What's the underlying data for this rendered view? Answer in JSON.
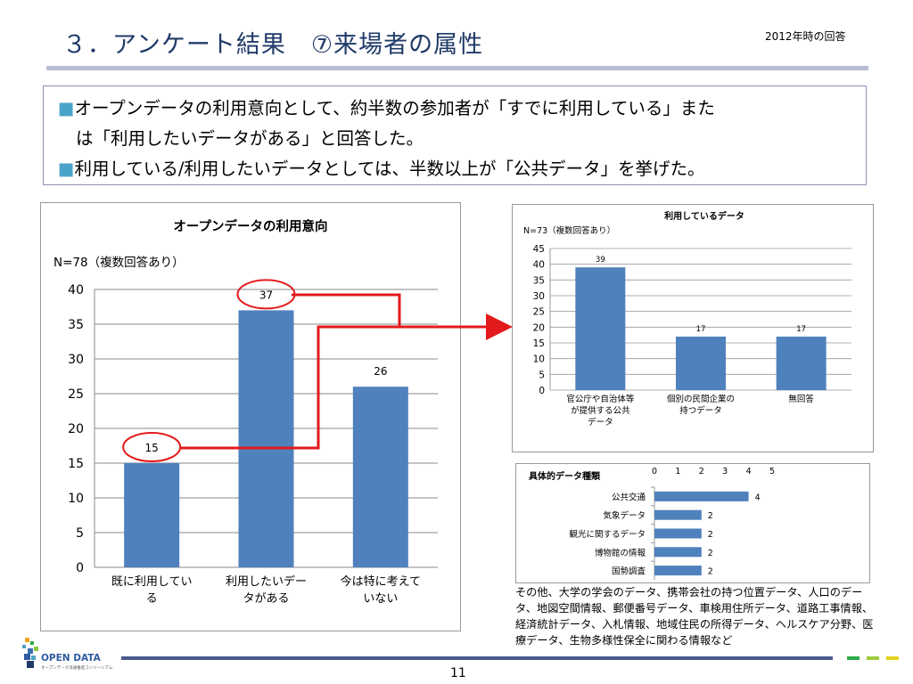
{
  "header": {
    "title": "３．アンケート結果　⑦来場者の属性",
    "date_note": "2012年時の回答"
  },
  "summary": {
    "bullet_marker": "■",
    "lines": [
      "オープンデータの利用意向として、約半数の参加者が「すでに利用している」また",
      "は「利用したいデータがある」と回答した。",
      "利用している/利用したいデータとしては、半数以上が「公共データ」を挙げた。"
    ]
  },
  "chart_data": [
    {
      "type": "bar",
      "title": "オープンデータの利用意向",
      "note": "N=78（複数回答あり）",
      "categories": [
        [
          "既に利用してい",
          "る"
        ],
        [
          "利用したいデー",
          "タがある"
        ],
        [
          "今は特に考えて",
          "いない"
        ]
      ],
      "values": [
        15,
        37,
        26
      ],
      "value_labels": [
        "15",
        "37",
        "26"
      ],
      "ylim": [
        0,
        40
      ],
      "yticks": [
        "0",
        "5",
        "10",
        "15",
        "20",
        "25",
        "30",
        "35",
        "40"
      ],
      "highlighted": [
        0,
        1
      ],
      "bar_color": "#4f81bd",
      "highlight_color": "#e31a1c"
    },
    {
      "type": "bar",
      "title": "利用しているデータ",
      "note": "N=73（複数回答あり）",
      "categories": [
        [
          "官公庁や自治体等",
          "が提供する公共",
          "データ"
        ],
        [
          "個別の民間企業の",
          "持つデータ"
        ],
        [
          "無回答"
        ]
      ],
      "values": [
        39,
        17,
        17
      ],
      "value_labels": [
        "39",
        "17",
        "17"
      ],
      "ylim": [
        0,
        45
      ],
      "yticks": [
        "0",
        "5",
        "10",
        "15",
        "20",
        "25",
        "30",
        "35",
        "40",
        "45"
      ],
      "bar_color": "#4f81bd"
    },
    {
      "type": "bar",
      "orientation": "horizontal",
      "title": "具体的データ種類",
      "categories": [
        "公共交通",
        "気象データ",
        "観光に関するデータ",
        "博物館の情報",
        "国勢調査"
      ],
      "values": [
        4,
        2,
        2,
        2,
        2
      ],
      "value_labels": [
        "4",
        "2",
        "2",
        "2",
        "2"
      ],
      "xlim": [
        0,
        5
      ],
      "xticks": [
        "0",
        "1",
        "2",
        "3",
        "4",
        "5"
      ],
      "bar_color": "#4f81bd"
    }
  ],
  "other_note": "その他、大学の学会のデータ、携帯会社の持つ位置データ、人口のデータ、地図空間情報、郵便番号データ、車検用住所データ、道路工事情報、経済統計データ、入札情報、地域住民の所得データ、ヘルスケア分野、医療データ、生物多様性保全に関わる情報など",
  "footer": {
    "logo_text": "OPEN DATA",
    "logo_subtext": "オープンデータ流通推進コンソーシアム",
    "page_number": "11",
    "accent_colors": [
      "#2eaa4a",
      "#9ccc3a",
      "#e6d21e"
    ]
  }
}
